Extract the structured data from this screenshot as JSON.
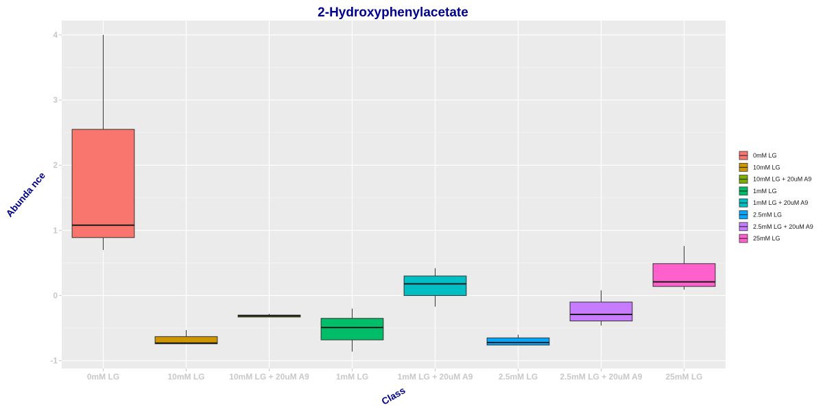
{
  "chart_data": {
    "type": "box",
    "title": "2-Hydroxyphenylacetate",
    "xlabel": "Class",
    "ylabel": "Abunda nce",
    "ylim": [
      -1.12,
      4.22
    ],
    "yticks": [
      -1,
      0,
      1,
      2,
      3,
      4
    ],
    "grid": true,
    "legend_position": "right",
    "categories": [
      "0mM LG",
      "10mM LG",
      "10mM LG + 20uM A9",
      "1mM LG",
      "1mM LG + 20uM A9",
      "2.5mM LG",
      "2.5mM LG + 20uM A9",
      "25mM LG"
    ],
    "colors": [
      "#F8766D",
      "#CD9600",
      "#7CAE00",
      "#00BE67",
      "#00BFC4",
      "#00A9FF",
      "#C77CFF",
      "#FF61CC"
    ],
    "boxes": [
      {
        "min": 0.7,
        "q1": 0.89,
        "median": 1.08,
        "q3": 2.55,
        "max": 4.0
      },
      {
        "min": -0.74,
        "q1": -0.74,
        "median": -0.73,
        "q3": -0.63,
        "max": -0.53
      },
      {
        "min": -0.33,
        "q1": -0.33,
        "median": -0.31,
        "q3": -0.3,
        "max": -0.28
      },
      {
        "min": -0.86,
        "q1": -0.68,
        "median": -0.49,
        "q3": -0.35,
        "max": -0.2
      },
      {
        "min": -0.17,
        "q1": 0.0,
        "median": 0.18,
        "q3": 0.3,
        "max": 0.42
      },
      {
        "min": -0.76,
        "q1": -0.76,
        "median": -0.72,
        "q3": -0.65,
        "max": -0.6
      },
      {
        "min": -0.46,
        "q1": -0.39,
        "median": -0.29,
        "q3": -0.1,
        "max": 0.08
      },
      {
        "min": 0.09,
        "q1": 0.14,
        "median": 0.21,
        "q3": 0.49,
        "max": 0.76
      }
    ]
  }
}
